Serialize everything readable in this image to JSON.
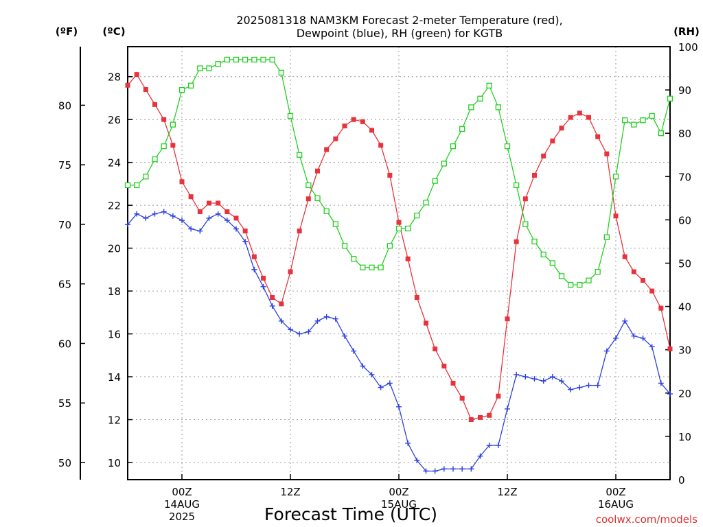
{
  "header": {
    "title_line1": "2025081318 NAM3KM Forecast 2-meter Temperature (red),",
    "title_line2": "Dewpoint (blue), RH (green) for KGTB"
  },
  "axes": {
    "unit_f": "(ºF)",
    "unit_c": "(ºC)",
    "unit_rh": "(RH)",
    "xlabel": "Forecast Time (UTC)",
    "credit": "coolwx.com/models"
  },
  "chart_data": {
    "type": "line",
    "title": "2025081318 NAM3KM Forecast 2-meter Temperature (red), Dewpoint (blue), RH (green) for KGTB",
    "xlabel": "Forecast Time (UTC)",
    "x_hours": [
      0,
      1,
      2,
      3,
      4,
      5,
      6,
      7,
      8,
      9,
      10,
      11,
      12,
      13,
      14,
      15,
      16,
      17,
      18,
      19,
      20,
      21,
      22,
      23,
      24,
      25,
      26,
      27,
      28,
      29,
      30,
      31,
      32,
      33,
      34,
      35,
      36,
      37,
      38,
      39,
      40,
      41,
      42,
      43,
      44,
      45,
      46,
      47,
      48,
      49,
      50,
      51,
      52,
      53,
      54,
      55,
      56,
      57,
      58,
      59,
      60
    ],
    "xlim": [
      0,
      60
    ],
    "x_ticks": [
      {
        "hour": 6,
        "lines": [
          "00Z",
          "14AUG",
          "2025"
        ]
      },
      {
        "hour": 18,
        "lines": [
          "12Z"
        ]
      },
      {
        "hour": 30,
        "lines": [
          "00Z",
          "15AUG"
        ]
      },
      {
        "hour": 42,
        "lines": [
          "12Z"
        ]
      },
      {
        "hour": 54,
        "lines": [
          "00Z",
          "16AUG"
        ]
      }
    ],
    "y_celsius": {
      "ylim": [
        9.2,
        29.4
      ],
      "ticks": [
        10,
        12,
        14,
        16,
        18,
        20,
        22,
        24,
        26,
        28
      ]
    },
    "y_fahrenheit": {
      "ticks": [
        50,
        55,
        60,
        65,
        70,
        75,
        80
      ]
    },
    "y_rh": {
      "ylim": [
        0,
        100
      ],
      "ticks": [
        0,
        10,
        20,
        30,
        40,
        50,
        60,
        70,
        80,
        90,
        100
      ]
    },
    "grid": true,
    "series": [
      {
        "name": "2-meter Temperature",
        "axis": "celsius",
        "color": "#e8323c",
        "marker": "filled-square",
        "values": [
          27.6,
          28.1,
          27.4,
          26.7,
          26.0,
          24.8,
          23.1,
          22.4,
          21.7,
          22.1,
          22.1,
          21.7,
          21.4,
          20.8,
          19.6,
          18.6,
          17.7,
          17.4,
          18.9,
          20.8,
          22.3,
          23.6,
          24.6,
          25.1,
          25.7,
          26.0,
          25.9,
          25.5,
          24.8,
          23.4,
          21.2,
          19.5,
          17.7,
          16.5,
          15.3,
          14.5,
          13.7,
          13.0,
          12.0,
          12.1,
          12.2,
          13.1,
          16.7,
          20.3,
          22.3,
          23.4,
          24.3,
          25.0,
          25.6,
          26.1,
          26.3,
          26.1,
          25.2,
          24.4,
          21.5,
          19.6,
          18.9,
          18.5,
          18.0,
          17.2,
          15.3
        ]
      },
      {
        "name": "Dewpoint",
        "axis": "celsius",
        "color": "#2a3fe0",
        "marker": "plus",
        "values": [
          21.1,
          21.6,
          21.4,
          21.6,
          21.7,
          21.5,
          21.3,
          20.9,
          20.8,
          21.4,
          21.6,
          21.3,
          20.9,
          20.3,
          19.0,
          18.2,
          17.3,
          16.6,
          16.2,
          16.0,
          16.1,
          16.6,
          16.8,
          16.7,
          15.9,
          15.2,
          14.5,
          14.1,
          13.5,
          13.7,
          12.6,
          10.9,
          10.1,
          9.6,
          9.6,
          9.7,
          9.7,
          9.7,
          9.7,
          10.3,
          10.8,
          10.8,
          12.5,
          14.1,
          14.0,
          13.9,
          13.8,
          14.0,
          13.8,
          13.4,
          13.5,
          13.6,
          13.6,
          15.2,
          15.8,
          16.6,
          15.9,
          15.8,
          15.4,
          13.7,
          13.2
        ]
      },
      {
        "name": "RH",
        "axis": "rh",
        "color": "#22d020",
        "marker": "open-square",
        "values": [
          68,
          68,
          70,
          74,
          77,
          82,
          90,
          91,
          95,
          95,
          96,
          97,
          97,
          97,
          97,
          97,
          97,
          94,
          84,
          75,
          68,
          65,
          62,
          59,
          54,
          51,
          49,
          49,
          49,
          54,
          58,
          58,
          61,
          64,
          69,
          73,
          77,
          81,
          86,
          88,
          91,
          86,
          77,
          68,
          59,
          55,
          52,
          50,
          47,
          45,
          45,
          46,
          48,
          56,
          70,
          83,
          82,
          83,
          84,
          80,
          88
        ]
      }
    ]
  }
}
